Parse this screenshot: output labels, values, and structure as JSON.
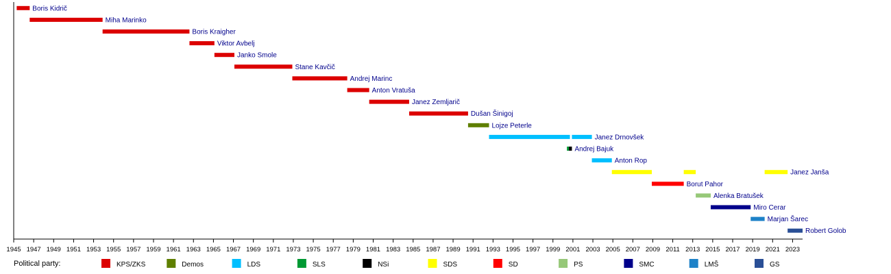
{
  "chart_data": {
    "type": "bar",
    "orientation": "horizontal-timeline",
    "xlim": [
      1945,
      2024
    ],
    "x_ticks": [
      1945,
      1947,
      1949,
      1951,
      1953,
      1955,
      1957,
      1959,
      1961,
      1963,
      1965,
      1967,
      1969,
      1971,
      1973,
      1975,
      1977,
      1979,
      1981,
      1983,
      1985,
      1987,
      1989,
      1991,
      1993,
      1995,
      1997,
      1999,
      2001,
      2003,
      2005,
      2007,
      2009,
      2011,
      2013,
      2015,
      2017,
      2019,
      2021,
      2023
    ],
    "grid": false,
    "legend_placement": "bottom",
    "legend_title": "Political party:",
    "parties": [
      {
        "key": "KPS",
        "label": "KPS/ZKS",
        "color": "#dc0000"
      },
      {
        "key": "Demos",
        "label": "Demos",
        "color": "#5f7f00"
      },
      {
        "key": "LDS",
        "label": "LDS",
        "color": "#00bfff"
      },
      {
        "key": "SLS",
        "label": "SLS",
        "color": "#009933"
      },
      {
        "key": "NSi",
        "label": "NSi",
        "color": "#000000"
      },
      {
        "key": "SDS",
        "label": "SDS",
        "color": "#ffff00"
      },
      {
        "key": "SD",
        "label": "SD",
        "color": "#ff0000"
      },
      {
        "key": "PS",
        "label": "PS",
        "color": "#96c878"
      },
      {
        "key": "SMC",
        "label": "SMC",
        "color": "#00008b"
      },
      {
        "key": "LMS",
        "label": "LMŠ",
        "color": "#1e82c8"
      },
      {
        "key": "GS",
        "label": "GS",
        "color": "#2a4f96"
      }
    ],
    "rows": [
      {
        "name": "Boris Kidrič",
        "terms": [
          {
            "start": 1945.3,
            "end": 1946.6,
            "party": "KPS"
          }
        ]
      },
      {
        "name": "Miha Marinko",
        "terms": [
          {
            "start": 1946.6,
            "end": 1953.9,
            "party": "KPS"
          }
        ]
      },
      {
        "name": "Boris Kraigher",
        "terms": [
          {
            "start": 1953.9,
            "end": 1962.6,
            "party": "KPS"
          }
        ]
      },
      {
        "name": "Viktor Avbelj",
        "terms": [
          {
            "start": 1962.6,
            "end": 1965.1,
            "party": "KPS"
          }
        ]
      },
      {
        "name": "Janko Smole",
        "terms": [
          {
            "start": 1965.1,
            "end": 1967.1,
            "party": "KPS"
          }
        ]
      },
      {
        "name": "Stane Kavčič",
        "terms": [
          {
            "start": 1967.1,
            "end": 1972.9,
            "party": "KPS"
          }
        ]
      },
      {
        "name": "Andrej Marinc",
        "terms": [
          {
            "start": 1972.9,
            "end": 1978.4,
            "party": "KPS"
          }
        ]
      },
      {
        "name": "Anton Vratuša",
        "terms": [
          {
            "start": 1978.4,
            "end": 1980.6,
            "party": "KPS"
          }
        ]
      },
      {
        "name": "Janez Zemljarič",
        "terms": [
          {
            "start": 1980.6,
            "end": 1984.6,
            "party": "KPS"
          }
        ]
      },
      {
        "name": "Dušan Šinigoj",
        "terms": [
          {
            "start": 1984.6,
            "end": 1990.5,
            "party": "KPS"
          }
        ]
      },
      {
        "name": "Lojze Peterle",
        "terms": [
          {
            "start": 1990.5,
            "end": 1992.6,
            "party": "Demos"
          }
        ]
      },
      {
        "name": "Janez Drnovšek",
        "terms": [
          {
            "start": 1992.6,
            "end": 2000.7,
            "party": "LDS"
          },
          {
            "start": 2000.9,
            "end": 2002.9,
            "party": "LDS"
          }
        ]
      },
      {
        "name": "Andrej Bajuk",
        "terms": [
          {
            "start": 2000.4,
            "end": 2000.6,
            "party": "SLS"
          },
          {
            "start": 2000.6,
            "end": 2000.9,
            "party": "NSi"
          }
        ]
      },
      {
        "name": "Anton Rop",
        "terms": [
          {
            "start": 2002.9,
            "end": 2004.9,
            "party": "LDS"
          }
        ]
      },
      {
        "name": "Janez Janša",
        "terms": [
          {
            "start": 2004.9,
            "end": 2008.9,
            "party": "SDS"
          },
          {
            "start": 2012.1,
            "end": 2013.3,
            "party": "SDS"
          },
          {
            "start": 2020.2,
            "end": 2022.5,
            "party": "SDS"
          }
        ]
      },
      {
        "name": "Borut Pahor",
        "terms": [
          {
            "start": 2008.9,
            "end": 2012.1,
            "party": "SD"
          }
        ]
      },
      {
        "name": "Alenka Bratušek",
        "terms": [
          {
            "start": 2013.3,
            "end": 2014.8,
            "party": "PS"
          }
        ]
      },
      {
        "name": "Miro Cerar",
        "terms": [
          {
            "start": 2014.8,
            "end": 2018.8,
            "party": "SMC"
          }
        ]
      },
      {
        "name": "Marjan Šarec",
        "terms": [
          {
            "start": 2018.8,
            "end": 2020.2,
            "party": "LMS"
          }
        ]
      },
      {
        "name": "Robert Golob",
        "terms": [
          {
            "start": 2022.5,
            "end": 2024.0,
            "party": "GS"
          }
        ]
      }
    ]
  }
}
